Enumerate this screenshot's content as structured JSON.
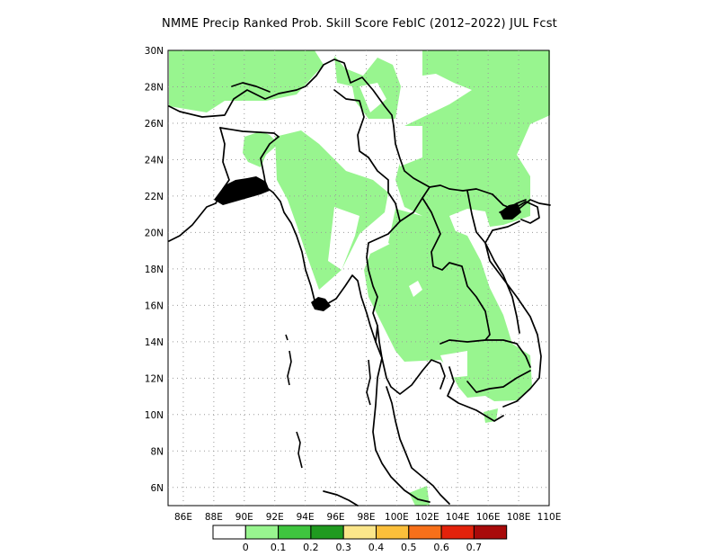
{
  "title": "NMME Precip Ranked Prob. Skill Score FebIC (2012–2022) JUL Fcst",
  "map": {
    "lon_ticks": [
      "86E",
      "88E",
      "90E",
      "92E",
      "94E",
      "96E",
      "98E",
      "100E",
      "102E",
      "104E",
      "106E",
      "108E",
      "110E"
    ],
    "lat_ticks": [
      "30N",
      "28N",
      "26N",
      "24N",
      "22N",
      "20N",
      "18N",
      "16N",
      "14N",
      "12N",
      "10N",
      "8N",
      "6N"
    ],
    "lon_range": [
      85,
      110
    ],
    "lat_range": [
      5,
      30
    ],
    "grid": "dotted",
    "coastline_color": "#000000",
    "skill_fill_color": "#98f58f"
  },
  "colorbar": {
    "colors": [
      "#ffffff",
      "#98f58f",
      "#3fc53f",
      "#1f9a1f",
      "#fbe68a",
      "#fbbf3b",
      "#f7701a",
      "#e3220b",
      "#a80a0a"
    ],
    "labels": [
      "0",
      "0.1",
      "0.2",
      "0.3",
      "0.4",
      "0.5",
      "0.6",
      "0.7"
    ]
  }
}
